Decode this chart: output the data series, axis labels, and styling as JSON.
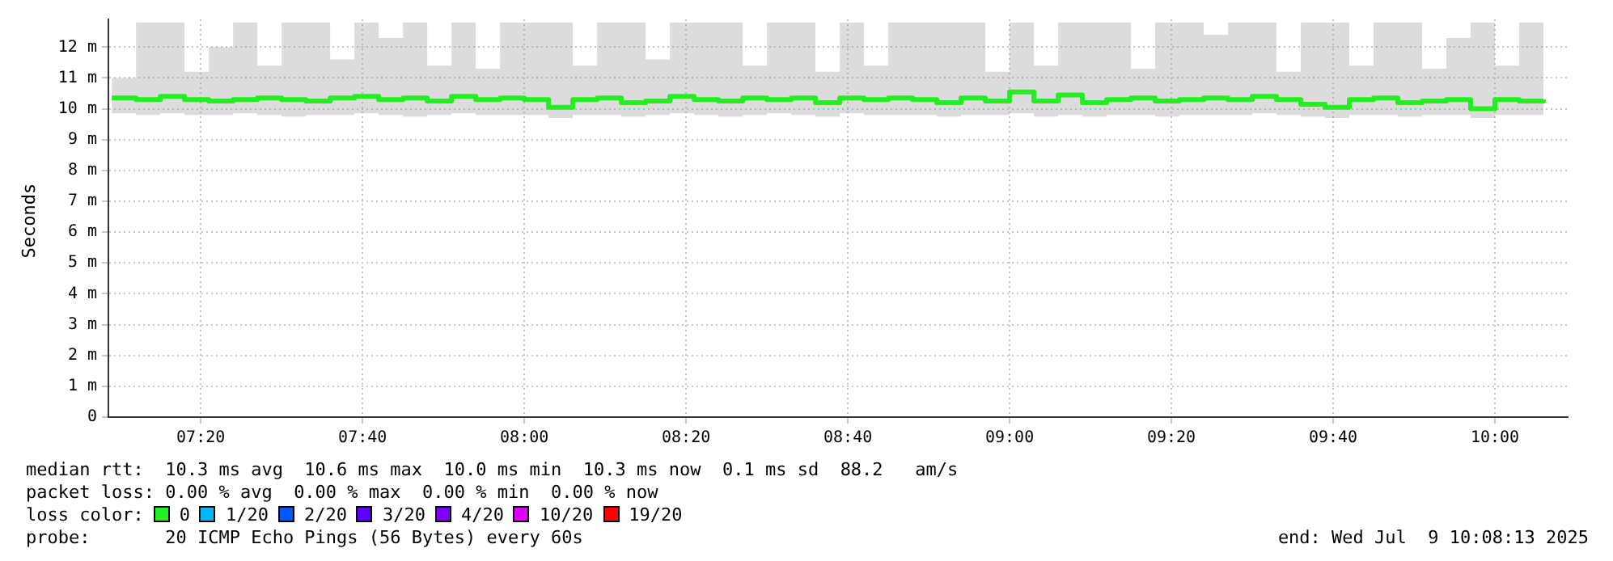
{
  "chart_data": {
    "type": "step",
    "ylabel": "Seconds",
    "legend_title": "loss color:",
    "legend": "bottom left",
    "grid": true,
    "xlim": [
      7.143,
      10.15
    ],
    "xticks": [
      {
        "value": 7.3333,
        "label": "07:20"
      },
      {
        "value": 7.6667,
        "label": "07:40"
      },
      {
        "value": 8,
        "label": "08:00"
      },
      {
        "value": 8.3333,
        "label": "08:20"
      },
      {
        "value": 8.6667,
        "label": "08:40"
      },
      {
        "value": 9,
        "label": "09:00"
      },
      {
        "value": 9.3333,
        "label": "09:20"
      },
      {
        "value": 9.6667,
        "label": "09:40"
      },
      {
        "value": 10,
        "label": "10:00"
      }
    ],
    "ylim": [
      0,
      12.9
    ],
    "yticks": [
      0,
      {
        "value": 1,
        "label": "1 m"
      },
      {
        "value": 2,
        "label": "2 m"
      },
      {
        "value": 3,
        "label": "3 m"
      },
      {
        "value": 4,
        "label": "4 m"
      },
      {
        "value": 5,
        "label": "5 m"
      },
      {
        "value": 6,
        "label": "6 m"
      },
      {
        "value": 7,
        "label": "7 m"
      },
      {
        "value": 8,
        "label": "8 m"
      },
      {
        "value": 9,
        "label": "9 m"
      },
      {
        "value": 10,
        "label": "10 m"
      },
      {
        "value": 11,
        "label": "11 m"
      },
      {
        "value": 12,
        "label": "12 m"
      }
    ],
    "x": [
      7.15,
      7.2,
      7.25,
      7.3,
      7.35,
      7.4,
      7.45,
      7.5,
      7.55,
      7.6,
      7.65,
      7.7,
      7.75,
      7.8,
      7.85,
      7.9,
      7.95,
      8.0,
      8.05,
      8.1,
      8.15,
      8.2,
      8.25,
      8.3,
      8.35,
      8.4,
      8.45,
      8.5,
      8.55,
      8.6,
      8.65,
      8.7,
      8.75,
      8.8,
      8.85,
      8.9,
      8.95,
      9.0,
      9.05,
      9.1,
      9.15,
      9.2,
      9.25,
      9.3,
      9.35,
      9.4,
      9.45,
      9.5,
      9.55,
      9.6,
      9.65,
      9.7,
      9.75,
      9.8,
      9.85,
      9.9,
      9.95,
      10.0,
      10.05,
      10.1
    ],
    "series": [
      {
        "name": "0",
        "color": "#22ee22",
        "values": [
          10.35,
          10.3,
          10.4,
          10.3,
          10.25,
          10.3,
          10.35,
          10.3,
          10.25,
          10.35,
          10.4,
          10.3,
          10.35,
          10.25,
          10.4,
          10.3,
          10.35,
          10.3,
          10.05,
          10.3,
          10.35,
          10.2,
          10.25,
          10.4,
          10.3,
          10.25,
          10.35,
          10.3,
          10.35,
          10.2,
          10.35,
          10.3,
          10.35,
          10.3,
          10.2,
          10.35,
          10.25,
          10.55,
          10.25,
          10.45,
          10.2,
          10.3,
          10.35,
          10.25,
          10.3,
          10.35,
          10.3,
          10.4,
          10.3,
          10.15,
          10.05,
          10.3,
          10.35,
          10.2,
          10.25,
          10.3,
          10.0,
          10.3,
          10.25,
          10.3
        ],
        "lower": [
          9.85,
          9.8,
          9.85,
          9.8,
          9.8,
          9.85,
          9.8,
          9.75,
          9.8,
          9.8,
          9.85,
          9.8,
          9.75,
          9.8,
          9.85,
          9.8,
          9.8,
          9.8,
          9.7,
          9.8,
          9.8,
          9.75,
          9.8,
          9.85,
          9.8,
          9.75,
          9.8,
          9.85,
          9.8,
          9.75,
          9.85,
          9.8,
          9.8,
          9.8,
          9.75,
          9.8,
          9.8,
          9.85,
          9.75,
          9.8,
          9.75,
          9.8,
          9.8,
          9.75,
          9.8,
          9.8,
          9.8,
          9.85,
          9.8,
          9.75,
          9.7,
          9.8,
          9.8,
          9.75,
          9.8,
          9.8,
          9.7,
          9.8,
          9.8,
          9.85
        ],
        "upper": [
          11.0,
          12.8,
          12.8,
          11.2,
          12.0,
          12.8,
          11.4,
          12.8,
          12.8,
          11.6,
          12.8,
          12.3,
          12.8,
          11.4,
          12.8,
          11.3,
          12.8,
          12.8,
          12.8,
          11.4,
          12.8,
          12.8,
          11.6,
          12.8,
          12.8,
          12.8,
          11.4,
          12.8,
          12.8,
          11.2,
          12.8,
          11.4,
          12.8,
          12.8,
          12.8,
          12.8,
          11.2,
          12.8,
          11.4,
          12.8,
          12.8,
          12.8,
          11.3,
          12.8,
          12.8,
          12.4,
          12.8,
          12.8,
          11.2,
          12.8,
          12.8,
          11.4,
          12.8,
          12.8,
          11.3,
          12.3,
          12.8,
          11.4,
          12.8,
          11.9
        ]
      },
      {
        "name": "1/20",
        "color": "#00b8ff",
        "values": [
          null,
          null,
          null,
          null,
          null,
          null,
          null,
          null,
          null,
          null,
          null,
          null,
          null,
          null,
          null,
          null,
          null,
          null,
          null,
          null,
          null,
          null,
          null,
          null,
          null,
          null,
          null,
          null,
          null,
          null,
          null,
          null,
          null,
          null,
          null,
          null,
          null,
          null,
          null,
          null,
          null,
          null,
          null,
          null,
          null,
          null,
          null,
          null,
          null,
          null,
          null,
          null,
          null,
          null,
          null,
          null,
          null,
          null,
          null,
          null
        ]
      },
      {
        "name": "2/20",
        "color": "#0059ff",
        "values": [
          null,
          null,
          null,
          null,
          null,
          null,
          null,
          null,
          null,
          null,
          null,
          null,
          null,
          null,
          null,
          null,
          null,
          null,
          null,
          null,
          null,
          null,
          null,
          null,
          null,
          null,
          null,
          null,
          null,
          null,
          null,
          null,
          null,
          null,
          null,
          null,
          null,
          null,
          null,
          null,
          null,
          null,
          null,
          null,
          null,
          null,
          null,
          null,
          null,
          null,
          null,
          null,
          null,
          null,
          null,
          null,
          null,
          null,
          null,
          null
        ]
      },
      {
        "name": "3/20",
        "color": "#5e00ff",
        "values": [
          null,
          null,
          null,
          null,
          null,
          null,
          null,
          null,
          null,
          null,
          null,
          null,
          null,
          null,
          null,
          null,
          null,
          null,
          null,
          null,
          null,
          null,
          null,
          null,
          null,
          null,
          null,
          null,
          null,
          null,
          null,
          null,
          null,
          null,
          null,
          null,
          null,
          null,
          null,
          null,
          null,
          null,
          null,
          null,
          null,
          null,
          null,
          null,
          null,
          null,
          null,
          null,
          null,
          null,
          null,
          null,
          null,
          null,
          null,
          null
        ]
      },
      {
        "name": "4/20",
        "color": "#7e00ff",
        "values": [
          null,
          null,
          null,
          null,
          null,
          null,
          null,
          null,
          null,
          null,
          null,
          null,
          null,
          null,
          null,
          null,
          null,
          null,
          null,
          null,
          null,
          null,
          null,
          null,
          null,
          null,
          null,
          null,
          null,
          null,
          null,
          null,
          null,
          null,
          null,
          null,
          null,
          null,
          null,
          null,
          null,
          null,
          null,
          null,
          null,
          null,
          null,
          null,
          null,
          null,
          null,
          null,
          null,
          null,
          null,
          null,
          null,
          null,
          null,
          null
        ]
      },
      {
        "name": "10/20",
        "color": "#dd00ff",
        "values": [
          null,
          null,
          null,
          null,
          null,
          null,
          null,
          null,
          null,
          null,
          null,
          null,
          null,
          null,
          null,
          null,
          null,
          null,
          null,
          null,
          null,
          null,
          null,
          null,
          null,
          null,
          null,
          null,
          null,
          null,
          null,
          null,
          null,
          null,
          null,
          null,
          null,
          null,
          null,
          null,
          null,
          null,
          null,
          null,
          null,
          null,
          null,
          null,
          null,
          null,
          null,
          null,
          null,
          null,
          null,
          null,
          null,
          null,
          null,
          null
        ]
      },
      {
        "name": "19/20",
        "color": "#ff0000",
        "values": [
          null,
          null,
          null,
          null,
          null,
          null,
          null,
          null,
          null,
          null,
          null,
          null,
          null,
          null,
          null,
          null,
          null,
          null,
          null,
          null,
          null,
          null,
          null,
          null,
          null,
          null,
          null,
          null,
          null,
          null,
          null,
          null,
          null,
          null,
          null,
          null,
          null,
          null,
          null,
          null,
          null,
          null,
          null,
          null,
          null,
          null,
          null,
          null,
          null,
          null,
          null,
          null,
          null,
          null,
          null,
          null,
          null,
          null,
          null,
          null
        ]
      }
    ],
    "annotations": [
      "median rtt:  10.3 ms avg  10.6 ms max  10.0 ms min  10.3 ms now  0.1 ms sd  88.2   am/s",
      "packet loss: 0.00 % avg  0.00 % max  0.00 % min  0.00 % now",
      "probe:       20 ICMP Echo Pings (56 Bytes) every 60s",
      "end: Wed Jul  9 10:08:13 2025"
    ]
  }
}
